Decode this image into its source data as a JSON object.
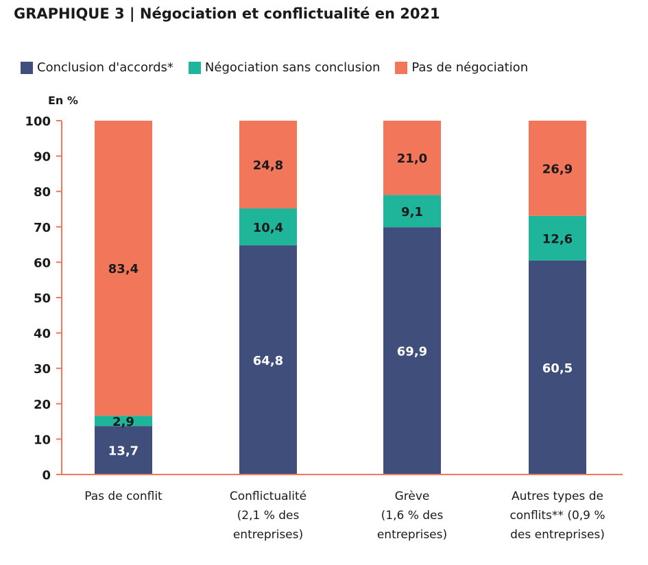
{
  "chart_data": {
    "type": "bar",
    "stacked": true,
    "title": "GRAPHIQUE 3 |  Négociation et conflictualité en 2021",
    "ylabel": "En %",
    "xlabel": "",
    "ylim": [
      0,
      100
    ],
    "yticks": [
      0,
      10,
      20,
      30,
      40,
      50,
      60,
      70,
      80,
      90,
      100
    ],
    "grid": false,
    "legend_position": "top",
    "categories": [
      [
        "Pas de conflit"
      ],
      [
        "Conflictualité",
        "(2,1 % des",
        "entreprises)"
      ],
      [
        "Grève",
        "(1,6 % des",
        "entreprises)"
      ],
      [
        "Autres types de",
        "conflits** (0,9 %",
        "des entreprises)"
      ]
    ],
    "series": [
      {
        "name": "Conclusion d'accords*",
        "color": "#3f4e7a",
        "label_color": "#ffffff",
        "values": [
          13.7,
          64.8,
          69.9,
          60.5
        ],
        "labels": [
          "13,7",
          "64,8",
          "69,9",
          "60,5"
        ]
      },
      {
        "name": "Négociation sans conclusion",
        "color": "#1fb59a",
        "label_color": "#1a1a1a",
        "values": [
          2.9,
          10.4,
          9.1,
          12.6
        ],
        "labels": [
          "2,9",
          "10,4",
          "9,1",
          "12,6"
        ]
      },
      {
        "name": "Pas de négociation",
        "color": "#f2765a",
        "label_color": "#1a1a1a",
        "values": [
          83.4,
          24.8,
          21.0,
          26.9
        ],
        "labels": [
          "83,4",
          "24,8",
          "21,0",
          "26,9"
        ]
      }
    ],
    "axis_color": "#f2765a"
  }
}
